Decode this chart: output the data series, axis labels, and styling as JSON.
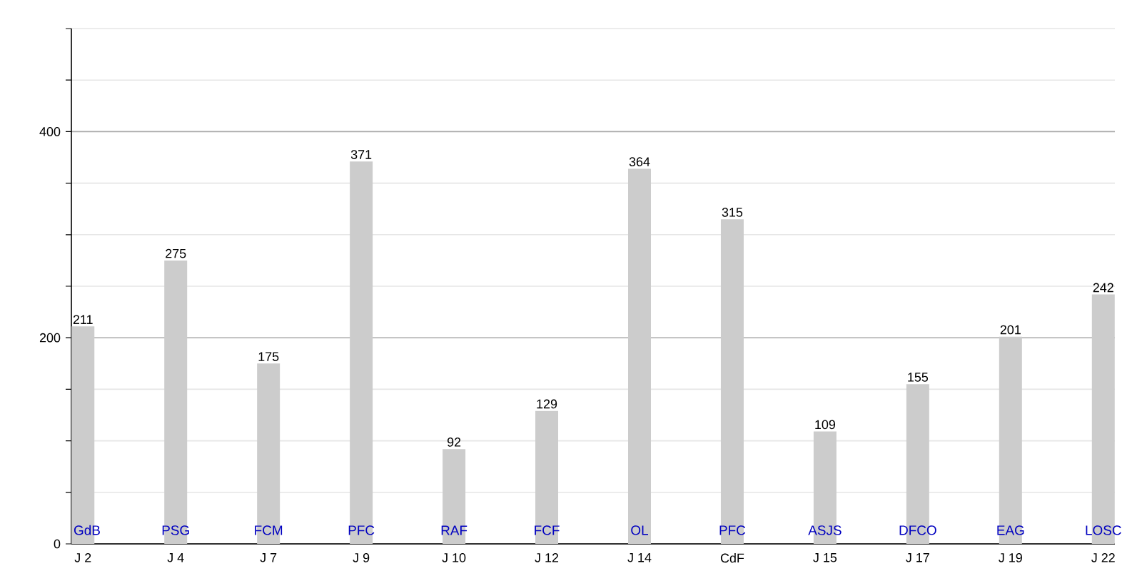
{
  "chart_data": {
    "type": "bar",
    "categories": [
      "J 2",
      "J 4",
      "J 7",
      "J 9",
      "J 10",
      "J 12",
      "J 14",
      "CdF",
      "J 15",
      "J 17",
      "J 19",
      "J 22"
    ],
    "values": [
      211,
      275,
      175,
      371,
      92,
      129,
      364,
      315,
      109,
      155,
      201,
      242
    ],
    "color": "#cccccc",
    "ylim": [
      0,
      500
    ],
    "yticks": [
      0,
      {
        "value": 50,
        "label": null
      },
      {
        "value": 100,
        "label": null
      },
      {
        "value": 150,
        "label": null
      },
      200,
      {
        "value": 250,
        "label": null
      },
      {
        "value": 300,
        "label": null
      },
      {
        "value": 350,
        "label": null
      },
      400,
      {
        "value": 450,
        "label": null
      },
      {
        "value": 500,
        "label": null
      }
    ],
    "grid": "y",
    "data_labels": true,
    "annotations": [
      "GdB",
      "PSG",
      "FCM",
      "PFC",
      "RAF",
      "FCF",
      "OL",
      "PFC",
      "ASJS",
      "DFCO",
      "EAG",
      "LOSC"
    ]
  }
}
